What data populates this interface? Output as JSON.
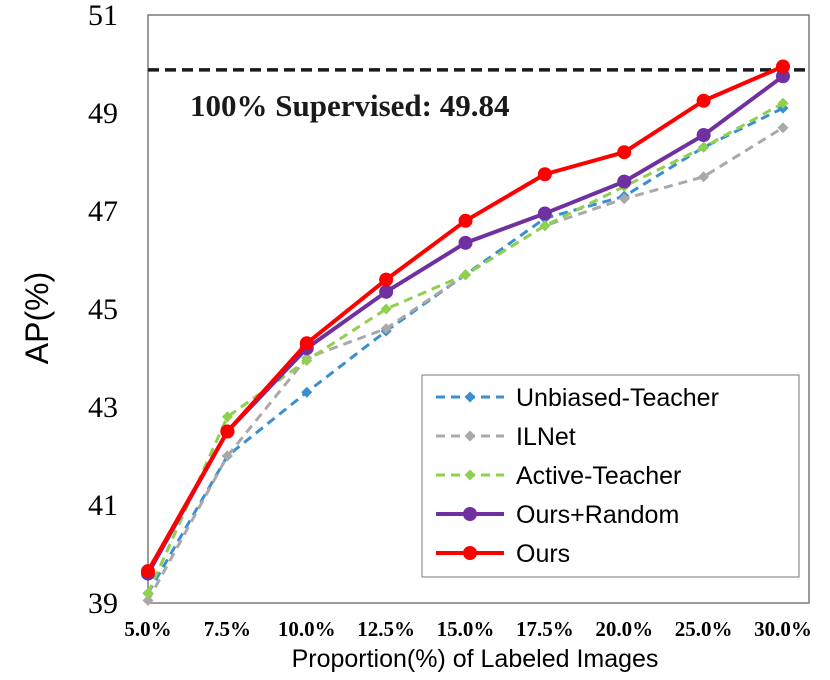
{
  "chart_data": {
    "type": "line",
    "xlabel": "Proportion(%) of Labeled Images",
    "ylabel": "AP(%)",
    "categories": [
      "5.0%",
      "7.5%",
      "10.0%",
      "12.5%",
      "15.0%",
      "17.5%",
      "20.0%",
      "25.0%",
      "30.0%"
    ],
    "ylim": [
      39,
      51
    ],
    "yticks": [
      "39",
      "41",
      "43",
      "45",
      "47",
      "49",
      "51"
    ],
    "grid": false,
    "legend_position": "bottom-right",
    "reference_line": {
      "label": "100% Supervised: 49.84",
      "value": 49.84,
      "color": "#1a1a1a"
    },
    "series": [
      {
        "name": "Unbiased-Teacher",
        "style": "dashed",
        "marker": "diamond",
        "color": "#3a8fd0",
        "values": [
          39.2,
          42.0,
          43.3,
          44.55,
          45.7,
          46.85,
          47.3,
          48.3,
          49.1
        ]
      },
      {
        "name": "ILNet",
        "style": "dashed",
        "marker": "diamond",
        "color": "#a9a9a9",
        "values": [
          39.05,
          42.0,
          44.0,
          44.6,
          45.7,
          46.7,
          47.25,
          47.7,
          48.7
        ]
      },
      {
        "name": "Active-Teacher",
        "style": "dashed",
        "marker": "diamond",
        "color": "#8fd14f",
        "values": [
          39.2,
          42.8,
          43.95,
          45.0,
          45.7,
          46.7,
          47.5,
          48.3,
          49.2
        ]
      },
      {
        "name": "Ours+Random",
        "style": "solid",
        "marker": "circle",
        "color": "#7030a0",
        "values": [
          39.6,
          42.5,
          44.2,
          45.35,
          46.35,
          46.95,
          47.6,
          48.55,
          49.75
        ]
      },
      {
        "name": "Ours",
        "style": "solid",
        "marker": "circle",
        "color": "#ff0000",
        "values": [
          39.65,
          42.5,
          44.3,
          45.6,
          46.8,
          47.75,
          48.2,
          49.25,
          49.95
        ]
      }
    ]
  }
}
